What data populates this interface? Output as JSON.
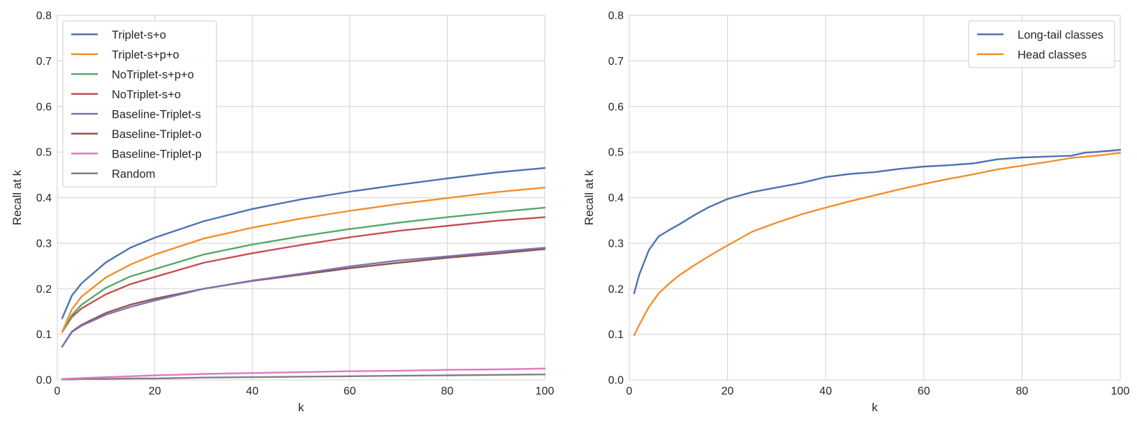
{
  "chart_data": [
    {
      "type": "line",
      "xlabel": "k",
      "ylabel": "Recall at k",
      "xlim": [
        0,
        100
      ],
      "ylim": [
        0,
        0.8
      ],
      "xticks": [
        "0",
        "20",
        "40",
        "60",
        "80",
        "100"
      ],
      "yticks": [
        "0.0",
        "0.1",
        "0.2",
        "0.3",
        "0.4",
        "0.5",
        "0.6",
        "0.7",
        "0.8"
      ],
      "grid": true,
      "legend_position": "upper-left",
      "x": [
        1,
        3,
        5,
        10,
        15,
        20,
        30,
        40,
        50,
        60,
        70,
        80,
        90,
        100
      ],
      "series": [
        {
          "name": "Triplet-s+o",
          "color": "#4c72b0",
          "values": [
            0.135,
            0.185,
            0.212,
            0.258,
            0.29,
            0.312,
            0.348,
            0.375,
            0.396,
            0.413,
            0.428,
            0.442,
            0.455,
            0.465
          ]
        },
        {
          "name": "Triplet-s+p+o",
          "color": "#f28e2b",
          "values": [
            0.105,
            0.155,
            0.183,
            0.225,
            0.253,
            0.275,
            0.31,
            0.334,
            0.354,
            0.371,
            0.386,
            0.399,
            0.412,
            0.422
          ]
        },
        {
          "name": "NoTriplet-s+p+o",
          "color": "#55a868",
          "values": [
            0.105,
            0.142,
            0.165,
            0.202,
            0.227,
            0.243,
            0.275,
            0.297,
            0.315,
            0.331,
            0.345,
            0.357,
            0.368,
            0.378
          ]
        },
        {
          "name": "NoTriplet-s+o",
          "color": "#c44e52",
          "values": [
            0.105,
            0.138,
            0.157,
            0.188,
            0.21,
            0.226,
            0.257,
            0.278,
            0.296,
            0.313,
            0.327,
            0.338,
            0.349,
            0.357
          ]
        },
        {
          "name": "Baseline-Triplet-s",
          "color": "#8172b2",
          "values": [
            0.073,
            0.105,
            0.119,
            0.143,
            0.16,
            0.174,
            0.2,
            0.218,
            0.233,
            0.249,
            0.262,
            0.271,
            0.281,
            0.29
          ]
        },
        {
          "name": "Baseline-Triplet-o",
          "color": "#8c564b",
          "values": [
            0.073,
            0.106,
            0.121,
            0.147,
            0.165,
            0.178,
            0.2,
            0.217,
            0.231,
            0.245,
            0.257,
            0.268,
            0.277,
            0.287
          ]
        },
        {
          "name": "Baseline-Triplet-p",
          "color": "#e377c2",
          "values": [
            0.002,
            0.003,
            0.004,
            0.006,
            0.008,
            0.01,
            0.013,
            0.015,
            0.017,
            0.019,
            0.02,
            0.022,
            0.023,
            0.025
          ]
        },
        {
          "name": "Random",
          "color": "#7f7f7f",
          "values": [
            0.001,
            0.001,
            0.002,
            0.002,
            0.003,
            0.003,
            0.005,
            0.006,
            0.007,
            0.008,
            0.009,
            0.01,
            0.011,
            0.012
          ]
        }
      ]
    },
    {
      "type": "line",
      "xlabel": "k",
      "ylabel": "Recall at k",
      "xlim": [
        0,
        100
      ],
      "ylim": [
        0,
        0.8
      ],
      "xticks": [
        "0",
        "20",
        "40",
        "60",
        "80",
        "100"
      ],
      "yticks": [
        "0.0",
        "0.1",
        "0.2",
        "0.3",
        "0.4",
        "0.5",
        "0.6",
        "0.7",
        "0.8"
      ],
      "grid": true,
      "legend_position": "upper-right",
      "x": [
        1,
        2,
        4,
        6,
        8,
        10,
        13,
        16,
        20,
        25,
        30,
        35,
        40,
        45,
        50,
        55,
        60,
        65,
        70,
        75,
        80,
        85,
        90,
        93,
        95,
        100
      ],
      "series": [
        {
          "name": "Long-tail classes",
          "color": "#4c72b0",
          "values": [
            0.19,
            0.23,
            0.285,
            0.315,
            0.328,
            0.34,
            0.36,
            0.378,
            0.397,
            0.412,
            0.422,
            0.432,
            0.445,
            0.452,
            0.456,
            0.463,
            0.468,
            0.471,
            0.475,
            0.484,
            0.488,
            0.49,
            0.492,
            0.499,
            0.5,
            0.505
          ]
        },
        {
          "name": "Head classes",
          "color": "#f28e2b",
          "values": [
            0.098,
            0.12,
            0.16,
            0.19,
            0.21,
            0.228,
            0.25,
            0.27,
            0.295,
            0.325,
            0.345,
            0.363,
            0.378,
            0.392,
            0.405,
            0.418,
            0.43,
            0.441,
            0.451,
            0.462,
            0.47,
            0.478,
            0.487,
            0.49,
            0.492,
            0.498
          ]
        }
      ]
    }
  ]
}
